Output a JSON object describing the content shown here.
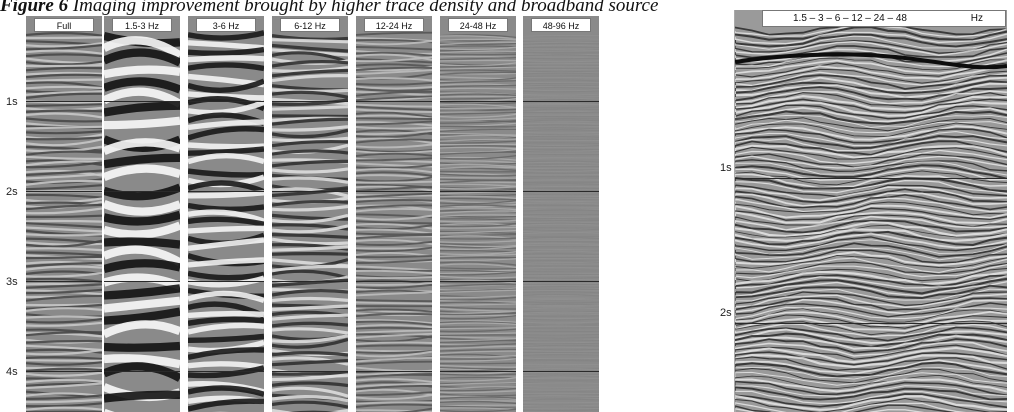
{
  "caption": {
    "label": "Figure 6",
    "text": "Imaging improvement brought by higher trace density and broadband source"
  },
  "left_figure": {
    "panels": [
      {
        "label": "Full",
        "amplitude": 0.55,
        "wavelength": 7
      },
      {
        "label": "1.5-3 Hz",
        "amplitude": 1.0,
        "wavelength": 26
      },
      {
        "label": "3-6 Hz",
        "amplitude": 0.95,
        "wavelength": 17
      },
      {
        "label": "6-12 Hz",
        "amplitude": 0.75,
        "wavelength": 10
      },
      {
        "label": "12-24 Hz",
        "amplitude": 0.45,
        "wavelength": 6
      },
      {
        "label": "24-48 Hz",
        "amplitude": 0.3,
        "wavelength": 4
      },
      {
        "label": "48-96 Hz",
        "amplitude": 0.05,
        "wavelength": 3
      }
    ],
    "time_labels": [
      "1s",
      "2s",
      "3s",
      "4s"
    ]
  },
  "right_figure": {
    "label_sequence": "1.5 – 3 – 6 – 12 – 24 – 48",
    "label_unit": "Hz",
    "time_labels": [
      "1s",
      "2s"
    ]
  }
}
